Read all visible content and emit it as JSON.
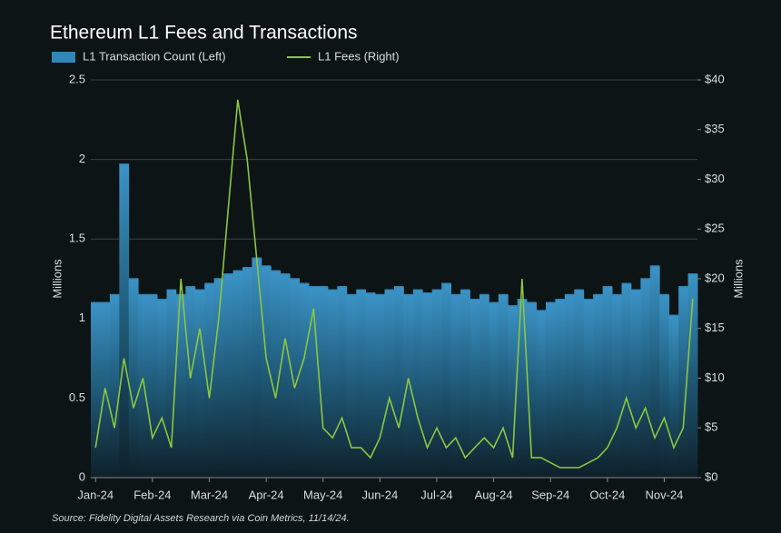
{
  "chart_data": {
    "type": "bar-line",
    "title": "Ethereum L1 Fees and Transactions",
    "ylabel": "Millions",
    "y2label": "Millions",
    "source": "Source: Fidelity Digital Assets Research via Coin Metrics, 11/14/24.",
    "categories": [
      "Jan-24",
      null,
      null,
      null,
      null,
      null,
      "Feb-24",
      null,
      null,
      null,
      null,
      null,
      "Mar-24",
      null,
      null,
      null,
      null,
      null,
      "Apr-24",
      null,
      null,
      null,
      null,
      null,
      "May-24",
      null,
      null,
      null,
      null,
      null,
      "Jun-24",
      null,
      null,
      null,
      null,
      null,
      "Jul-24",
      null,
      null,
      null,
      null,
      null,
      "Aug-24",
      null,
      null,
      null,
      null,
      null,
      "Sep-24",
      null,
      null,
      null,
      null,
      null,
      "Oct-24",
      null,
      null,
      null,
      null,
      null,
      "Nov-24",
      null,
      null,
      null
    ],
    "ylim": [
      0,
      2.5
    ],
    "yticks": [
      0,
      0.5,
      1,
      1.5,
      2,
      2.5
    ],
    "y2lim": [
      0,
      40
    ],
    "y2ticks": [
      {
        "value": 0,
        "label": "$0"
      },
      {
        "value": 5,
        "label": "$5"
      },
      {
        "value": 10,
        "label": "$10"
      },
      {
        "value": 15,
        "label": "$15"
      },
      {
        "value": 20,
        "label": "$20"
      },
      {
        "value": 25,
        "label": "$25"
      },
      {
        "value": 30,
        "label": "$30"
      },
      {
        "value": 35,
        "label": "$35"
      },
      {
        "value": 40,
        "label": "$40"
      }
    ],
    "grid": true,
    "series": [
      {
        "name": "L1 Transaction Count (Left)",
        "type": "bar",
        "color": "#2f86b8",
        "values": [
          1.1,
          1.1,
          1.15,
          1.97,
          1.25,
          1.15,
          1.15,
          1.12,
          1.18,
          1.15,
          1.2,
          1.18,
          1.22,
          1.25,
          1.28,
          1.3,
          1.32,
          1.38,
          1.33,
          1.3,
          1.28,
          1.25,
          1.22,
          1.2,
          1.2,
          1.18,
          1.2,
          1.15,
          1.18,
          1.16,
          1.15,
          1.18,
          1.2,
          1.15,
          1.18,
          1.16,
          1.18,
          1.22,
          1.15,
          1.18,
          1.12,
          1.15,
          1.1,
          1.15,
          1.08,
          1.12,
          1.1,
          1.05,
          1.1,
          1.12,
          1.15,
          1.18,
          1.12,
          1.15,
          1.2,
          1.15,
          1.22,
          1.18,
          1.25,
          1.33,
          1.15,
          1.02,
          1.2,
          1.28
        ]
      },
      {
        "name": "L1 Fees (Right)",
        "type": "line",
        "axis": "y2",
        "color": "#8cc63f",
        "values": [
          3,
          9,
          5,
          12,
          7,
          10,
          4,
          6,
          3,
          20,
          10,
          15,
          8,
          16,
          27,
          38,
          32,
          22,
          12,
          8,
          14,
          9,
          12,
          17,
          5,
          4,
          6,
          3,
          3,
          2,
          4,
          8,
          5,
          10,
          6,
          3,
          5,
          3,
          4,
          2,
          3,
          4,
          3,
          5,
          2,
          20,
          2,
          2,
          1.5,
          1,
          1,
          1,
          1.5,
          2,
          3,
          5,
          8,
          5,
          7,
          4,
          6,
          3,
          5,
          18
        ]
      }
    ]
  }
}
